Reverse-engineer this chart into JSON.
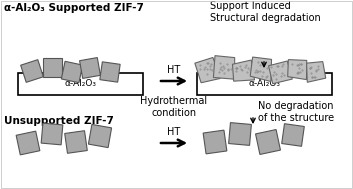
{
  "title_top": "α-Al₂O₃ Supported ZIF-7",
  "title_bottom": "Unsupported ZIF-7",
  "label_ht1": "HT",
  "label_ht2": "HT",
  "label_support1": "α-Al₂O₃",
  "label_support2": "α-Al₂O₃",
  "text_top_right": "Support Induced\nStructural degradation",
  "text_middle": "Hydrothermal\ncondition",
  "text_bottom_right": "No degradation\nof the structure",
  "bg_color": "#ffffff",
  "box_facecolor": "#ffffff",
  "box_edgecolor": "#000000",
  "crystal_color": "#a8a8a8",
  "degraded_color": "#c0c0c0",
  "text_color": "#000000",
  "arrow_color": "#000000",
  "crystal_edge": "#555555"
}
